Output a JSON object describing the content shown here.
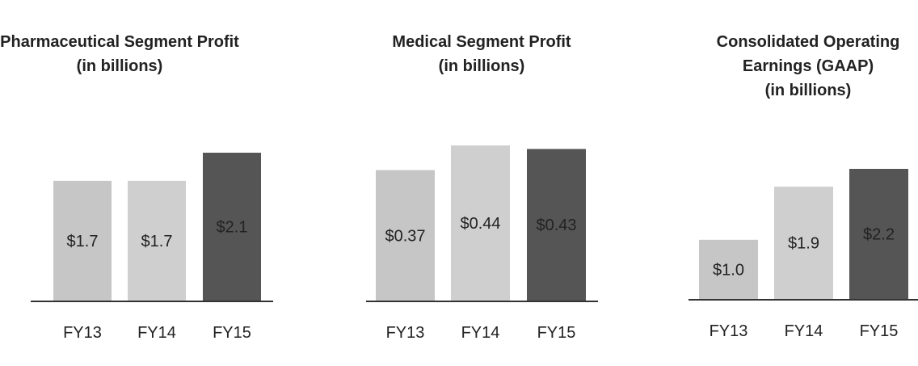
{
  "chart_data": [
    {
      "type": "bar",
      "title": [
        "Pharmaceutical Segment Profit"
      ],
      "subtitle": "(in billions)",
      "categories": [
        "FY13",
        "FY14",
        "FY15"
      ],
      "values": [
        1.7,
        1.7,
        2.1
      ],
      "value_labels": [
        "$1.7",
        "$1.7",
        "$2.1"
      ],
      "colors": [
        "#c6c6c6",
        "#cfcfcf",
        "#555555"
      ]
    },
    {
      "type": "bar",
      "title": [
        "Medical Segment Profit"
      ],
      "subtitle": "(in billions)",
      "categories": [
        "FY13",
        "FY14",
        "FY15"
      ],
      "values": [
        0.37,
        0.44,
        0.43
      ],
      "value_labels": [
        "$0.37",
        "$0.44",
        "$0.43"
      ],
      "colors": [
        "#c6c6c6",
        "#cfcfcf",
        "#555555"
      ]
    },
    {
      "type": "bar",
      "title": [
        "Consolidated Operating",
        "Earnings (GAAP)"
      ],
      "subtitle": "(in billions)",
      "categories": [
        "FY13",
        "FY14",
        "FY15"
      ],
      "values": [
        1.0,
        1.9,
        2.2
      ],
      "value_labels": [
        "$1.0",
        "$1.9",
        "$2.2"
      ],
      "colors": [
        "#c6c6c6",
        "#cfcfcf",
        "#555555"
      ]
    }
  ]
}
